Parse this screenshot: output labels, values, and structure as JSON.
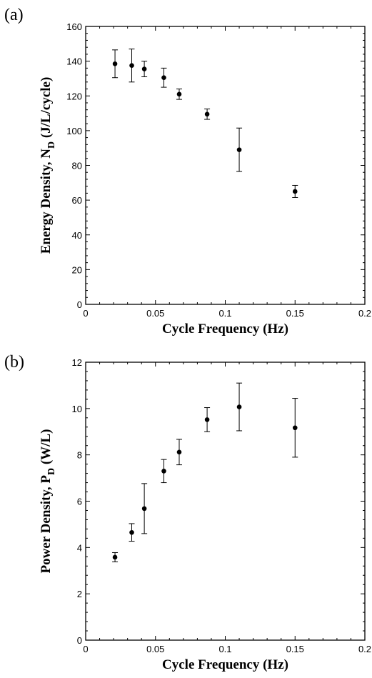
{
  "chart_data": [
    {
      "panel_label": "(a)",
      "type": "scatter",
      "xlabel": "Cycle Frequency (Hz)",
      "ylabel_main": "Energy Density, N",
      "ylabel_sub": "D",
      "ylabel_tail": " (J/L/cycle)",
      "xlim": [
        0,
        0.2
      ],
      "ylim": [
        0,
        160
      ],
      "xticks": [
        0,
        0.05,
        0.1,
        0.15,
        0.2
      ],
      "xtick_labels": [
        "0",
        "0.05",
        "0.1",
        "0.15",
        "0.2"
      ],
      "yticks": [
        0,
        20,
        40,
        60,
        80,
        100,
        120,
        140,
        160
      ],
      "ytick_labels": [
        "0",
        "20",
        "40",
        "60",
        "80",
        "100",
        "120",
        "140",
        "160"
      ],
      "grid": false,
      "series": [
        {
          "x": [
            0.021,
            0.033,
            0.042,
            0.056,
            0.067,
            0.087,
            0.11,
            0.15
          ],
          "y": [
            138.5,
            137.5,
            135.5,
            130.5,
            121.0,
            109.5,
            89.0,
            65.0
          ],
          "err": [
            8.0,
            9.5,
            4.5,
            5.5,
            3.0,
            3.0,
            12.5,
            3.5
          ]
        }
      ]
    },
    {
      "panel_label": "(b)",
      "type": "scatter",
      "xlabel": "Cycle Frequency (Hz)",
      "ylabel_main": "Power Density, P",
      "ylabel_sub": "D",
      "ylabel_tail": " (W/L)",
      "xlim": [
        0,
        0.2
      ],
      "ylim": [
        0,
        12
      ],
      "xticks": [
        0,
        0.05,
        0.1,
        0.15,
        0.2
      ],
      "xtick_labels": [
        "0",
        "0.05",
        "0.1",
        "0.15",
        "0.2"
      ],
      "yticks": [
        0,
        2,
        4,
        6,
        8,
        10,
        12
      ],
      "ytick_labels": [
        "0",
        "2",
        "4",
        "6",
        "8",
        "10",
        "12"
      ],
      "grid": false,
      "series": [
        {
          "x": [
            0.021,
            0.033,
            0.042,
            0.056,
            0.067,
            0.087,
            0.11,
            0.15
          ],
          "y": [
            3.58,
            4.65,
            5.68,
            7.3,
            8.12,
            9.52,
            10.07,
            9.17
          ],
          "err": [
            0.2,
            0.38,
            1.08,
            0.5,
            0.55,
            0.52,
            1.03,
            1.27
          ]
        }
      ]
    }
  ]
}
